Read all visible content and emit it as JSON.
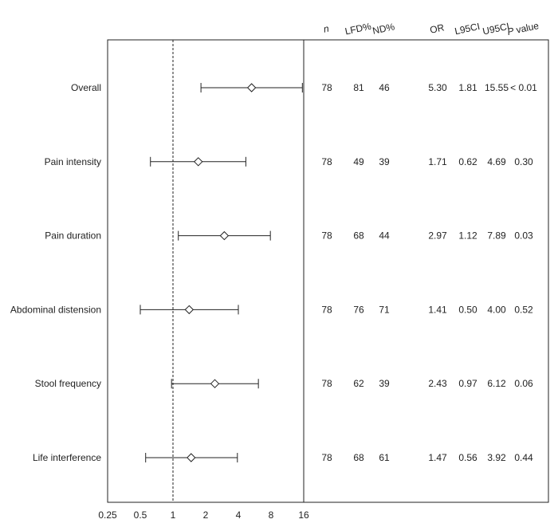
{
  "chart_data": {
    "type": "forest",
    "x_scale": "log2",
    "xlim": [
      0.25,
      16
    ],
    "reference_line": 1,
    "x_ticks": [
      {
        "value": 0.25,
        "label": "0.25"
      },
      {
        "value": 0.5,
        "label": "0.5"
      },
      {
        "value": 1,
        "label": "1"
      },
      {
        "value": 2,
        "label": "2"
      },
      {
        "value": 4,
        "label": "4"
      },
      {
        "value": 8,
        "label": "8"
      },
      {
        "value": 16,
        "label": "16"
      }
    ],
    "columns": [
      {
        "key": "n",
        "label": "n",
        "italic": true
      },
      {
        "key": "lfd",
        "label": "LFD%"
      },
      {
        "key": "nd",
        "label": "ND%"
      },
      {
        "key": "or",
        "label": "OR"
      },
      {
        "key": "l95",
        "label": "L95CI"
      },
      {
        "key": "u95",
        "label": "U95CI"
      },
      {
        "key": "p",
        "label": "P value"
      }
    ],
    "rows": [
      {
        "label": "Overall",
        "n": "78",
        "lfd": "81",
        "nd": "46",
        "or": "5.30",
        "l95": "1.81",
        "u95": "15.55",
        "p": "< 0.01",
        "or_v": 5.3,
        "lo_v": 1.81,
        "hi_v": 15.55
      },
      {
        "label": "Pain intensity",
        "n": "78",
        "lfd": "49",
        "nd": "39",
        "or": "1.71",
        "l95": "0.62",
        "u95": "4.69",
        "p": "0.30",
        "or_v": 1.71,
        "lo_v": 0.62,
        "hi_v": 4.69
      },
      {
        "label": "Pain duration",
        "n": "78",
        "lfd": "68",
        "nd": "44",
        "or": "2.97",
        "l95": "1.12",
        "u95": "7.89",
        "p": "0.03",
        "or_v": 2.97,
        "lo_v": 1.12,
        "hi_v": 7.89
      },
      {
        "label": "Abdominal distension",
        "n": "78",
        "lfd": "76",
        "nd": "71",
        "or": "1.41",
        "l95": "0.50",
        "u95": "4.00",
        "p": "0.52",
        "or_v": 1.41,
        "lo_v": 0.5,
        "hi_v": 4.0
      },
      {
        "label": "Stool frequency",
        "n": "78",
        "lfd": "62",
        "nd": "39",
        "or": "2.43",
        "l95": "0.97",
        "u95": "6.12",
        "p": "0.06",
        "or_v": 2.43,
        "lo_v": 0.97,
        "hi_v": 6.12
      },
      {
        "label": "Life interference",
        "n": "78",
        "lfd": "68",
        "nd": "61",
        "or": "1.47",
        "l95": "0.56",
        "u95": "3.92",
        "p": "0.44",
        "or_v": 1.47,
        "lo_v": 0.56,
        "hi_v": 3.92
      }
    ]
  }
}
